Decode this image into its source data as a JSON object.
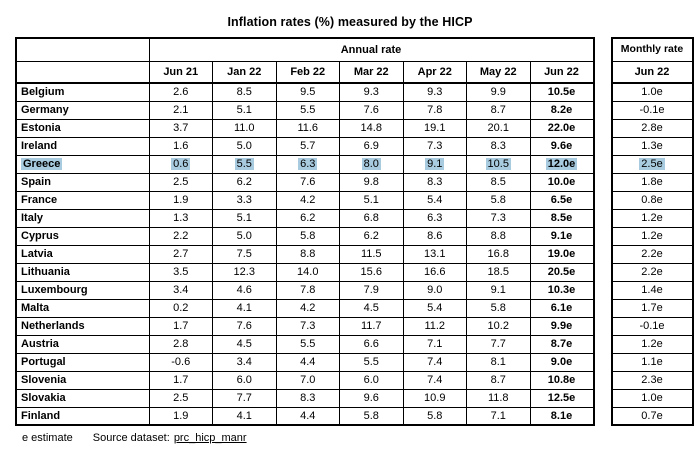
{
  "title": "Inflation rates (%) measured by the HICP",
  "table": {
    "annual_header": "Annual rate",
    "monthly_header": "Monthly rate",
    "columns": [
      "Jun 21",
      "Jan 22",
      "Feb 22",
      "Mar 22",
      "Apr 22",
      "May 22",
      "Jun 22"
    ],
    "monthly_column": "Jun 22",
    "rows": [
      {
        "country": "Belgium",
        "values": [
          "2.6",
          "8.5",
          "9.5",
          "9.3",
          "9.3",
          "9.9",
          "10.5e"
        ],
        "monthly": "1.0e",
        "highlighted": false
      },
      {
        "country": "Germany",
        "values": [
          "2.1",
          "5.1",
          "5.5",
          "7.6",
          "7.8",
          "8.7",
          "8.2e"
        ],
        "monthly": "-0.1e",
        "highlighted": false
      },
      {
        "country": "Estonia",
        "values": [
          "3.7",
          "11.0",
          "11.6",
          "14.8",
          "19.1",
          "20.1",
          "22.0e"
        ],
        "monthly": "2.8e",
        "highlighted": false
      },
      {
        "country": "Ireland",
        "values": [
          "1.6",
          "5.0",
          "5.7",
          "6.9",
          "7.3",
          "8.3",
          "9.6e"
        ],
        "monthly": "1.3e",
        "highlighted": false
      },
      {
        "country": "Greece",
        "values": [
          "0.6",
          "5.5",
          "6.3",
          "8.0",
          "9.1",
          "10.5",
          "12.0e"
        ],
        "monthly": "2.5e",
        "highlighted": true
      },
      {
        "country": "Spain",
        "values": [
          "2.5",
          "6.2",
          "7.6",
          "9.8",
          "8.3",
          "8.5",
          "10.0e"
        ],
        "monthly": "1.8e",
        "highlighted": false
      },
      {
        "country": "France",
        "values": [
          "1.9",
          "3.3",
          "4.2",
          "5.1",
          "5.4",
          "5.8",
          "6.5e"
        ],
        "monthly": "0.8e",
        "highlighted": false
      },
      {
        "country": "Italy",
        "values": [
          "1.3",
          "5.1",
          "6.2",
          "6.8",
          "6.3",
          "7.3",
          "8.5e"
        ],
        "monthly": "1.2e",
        "highlighted": false
      },
      {
        "country": "Cyprus",
        "values": [
          "2.2",
          "5.0",
          "5.8",
          "6.2",
          "8.6",
          "8.8",
          "9.1e"
        ],
        "monthly": "1.2e",
        "highlighted": false
      },
      {
        "country": "Latvia",
        "values": [
          "2.7",
          "7.5",
          "8.8",
          "11.5",
          "13.1",
          "16.8",
          "19.0e"
        ],
        "monthly": "2.2e",
        "highlighted": false
      },
      {
        "country": "Lithuania",
        "values": [
          "3.5",
          "12.3",
          "14.0",
          "15.6",
          "16.6",
          "18.5",
          "20.5e"
        ],
        "monthly": "2.2e",
        "highlighted": false
      },
      {
        "country": "Luxembourg",
        "values": [
          "3.4",
          "4.6",
          "7.8",
          "7.9",
          "9.0",
          "9.1",
          "10.3e"
        ],
        "monthly": "1.4e",
        "highlighted": false
      },
      {
        "country": "Malta",
        "values": [
          "0.2",
          "4.1",
          "4.2",
          "4.5",
          "5.4",
          "5.8",
          "6.1e"
        ],
        "monthly": "1.7e",
        "highlighted": false
      },
      {
        "country": "Netherlands",
        "values": [
          "1.7",
          "7.6",
          "7.3",
          "11.7",
          "11.2",
          "10.2",
          "9.9e"
        ],
        "monthly": "-0.1e",
        "highlighted": false
      },
      {
        "country": "Austria",
        "values": [
          "2.8",
          "4.5",
          "5.5",
          "6.6",
          "7.1",
          "7.7",
          "8.7e"
        ],
        "monthly": "1.2e",
        "highlighted": false
      },
      {
        "country": "Portugal",
        "values": [
          "-0.6",
          "3.4",
          "4.4",
          "5.5",
          "7.4",
          "8.1",
          "9.0e"
        ],
        "monthly": "1.1e",
        "highlighted": false
      },
      {
        "country": "Slovenia",
        "values": [
          "1.7",
          "6.0",
          "7.0",
          "6.0",
          "7.4",
          "8.7",
          "10.8e"
        ],
        "monthly": "2.3e",
        "highlighted": false
      },
      {
        "country": "Slovakia",
        "values": [
          "2.5",
          "7.7",
          "8.3",
          "9.6",
          "10.9",
          "11.8",
          "12.5e"
        ],
        "monthly": "1.0e",
        "highlighted": false
      },
      {
        "country": "Finland",
        "values": [
          "1.9",
          "4.1",
          "4.4",
          "5.8",
          "5.8",
          "7.1",
          "8.1e"
        ],
        "monthly": "0.7e",
        "highlighted": false
      }
    ]
  },
  "footer": {
    "estimate_note": "e estimate",
    "source_label": "Source dataset:",
    "source_link": "prc_hicp_manr"
  },
  "colors": {
    "highlight": "#a8cbdf",
    "border": "#000000"
  }
}
